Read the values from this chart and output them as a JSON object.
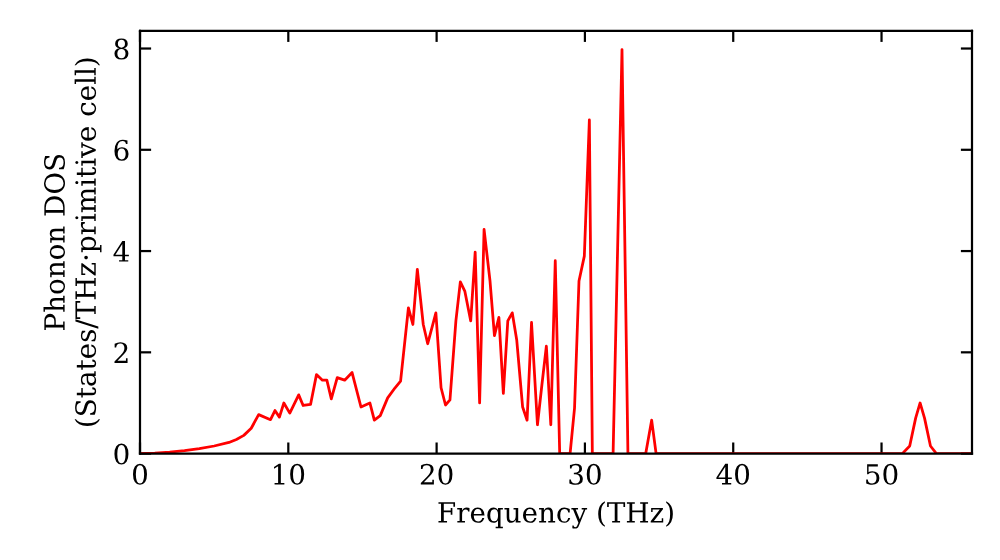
{
  "chart_data": {
    "type": "line",
    "xlabel": "Frequency (THz)",
    "ylabel": "Phonon DOS\n(States/THz·primitive cell)",
    "xlim": [
      0,
      56.1
    ],
    "ylim": [
      0,
      8.35
    ],
    "xticks": [
      0,
      10,
      20,
      30,
      40,
      50
    ],
    "yticks": [
      0,
      2,
      4,
      6,
      8
    ],
    "grid": false,
    "legend": false,
    "marker": "none",
    "line_style": "solid",
    "series": [
      {
        "color": "#ff0000",
        "x": [
          0,
          1,
          2,
          3,
          4,
          5,
          6,
          6.5,
          7,
          7.5,
          8.0,
          8.8,
          9.1,
          9.4,
          9.7,
          10.1,
          10.7,
          11.0,
          11.5,
          11.9,
          12.3,
          12.6,
          12.9,
          13.3,
          13.8,
          14.3,
          14.9,
          15.5,
          15.8,
          16.2,
          16.7,
          17.2,
          17.57,
          18.1,
          18.4,
          18.7,
          19.1,
          19.4,
          19.95,
          20.3,
          20.6,
          20.9,
          21.3,
          21.6,
          21.9,
          22.3,
          22.6,
          22.9,
          23.2,
          23.6,
          23.9,
          24.2,
          24.5,
          24.8,
          25.1,
          25.4,
          25.8,
          26.1,
          26.4,
          26.8,
          27.1,
          27.4,
          27.7,
          28.0,
          28.3,
          29.0,
          29.3,
          29.6,
          29.96,
          30.3,
          30.5,
          31.9,
          32.5,
          32.9,
          34.1,
          34.5,
          34.8,
          51.4,
          51.9,
          52.3,
          52.6,
          52.9,
          53.3,
          53.7,
          56.1
        ],
        "values": [
          0,
          0.01,
          0.03,
          0.06,
          0.1,
          0.15,
          0.22,
          0.28,
          0.36,
          0.5,
          0.77,
          0.67,
          0.85,
          0.72,
          1.0,
          0.8,
          1.16,
          0.95,
          0.97,
          1.56,
          1.45,
          1.45,
          1.08,
          1.5,
          1.45,
          1.6,
          0.92,
          1.0,
          0.66,
          0.75,
          1.1,
          1.3,
          1.43,
          2.88,
          2.55,
          3.64,
          2.55,
          2.17,
          2.78,
          1.3,
          0.96,
          1.06,
          2.62,
          3.39,
          3.21,
          2.62,
          3.98,
          1.0,
          4.43,
          3.41,
          2.33,
          2.69,
          1.19,
          2.62,
          2.78,
          2.25,
          0.92,
          0.66,
          2.59,
          0.57,
          1.36,
          2.12,
          0.57,
          3.81,
          0,
          0,
          0.9,
          3.41,
          3.9,
          6.59,
          0,
          0,
          7.98,
          0,
          0,
          0.66,
          0,
          0,
          0.15,
          0.7,
          1.0,
          0.7,
          0.15,
          0,
          0
        ]
      }
    ]
  }
}
